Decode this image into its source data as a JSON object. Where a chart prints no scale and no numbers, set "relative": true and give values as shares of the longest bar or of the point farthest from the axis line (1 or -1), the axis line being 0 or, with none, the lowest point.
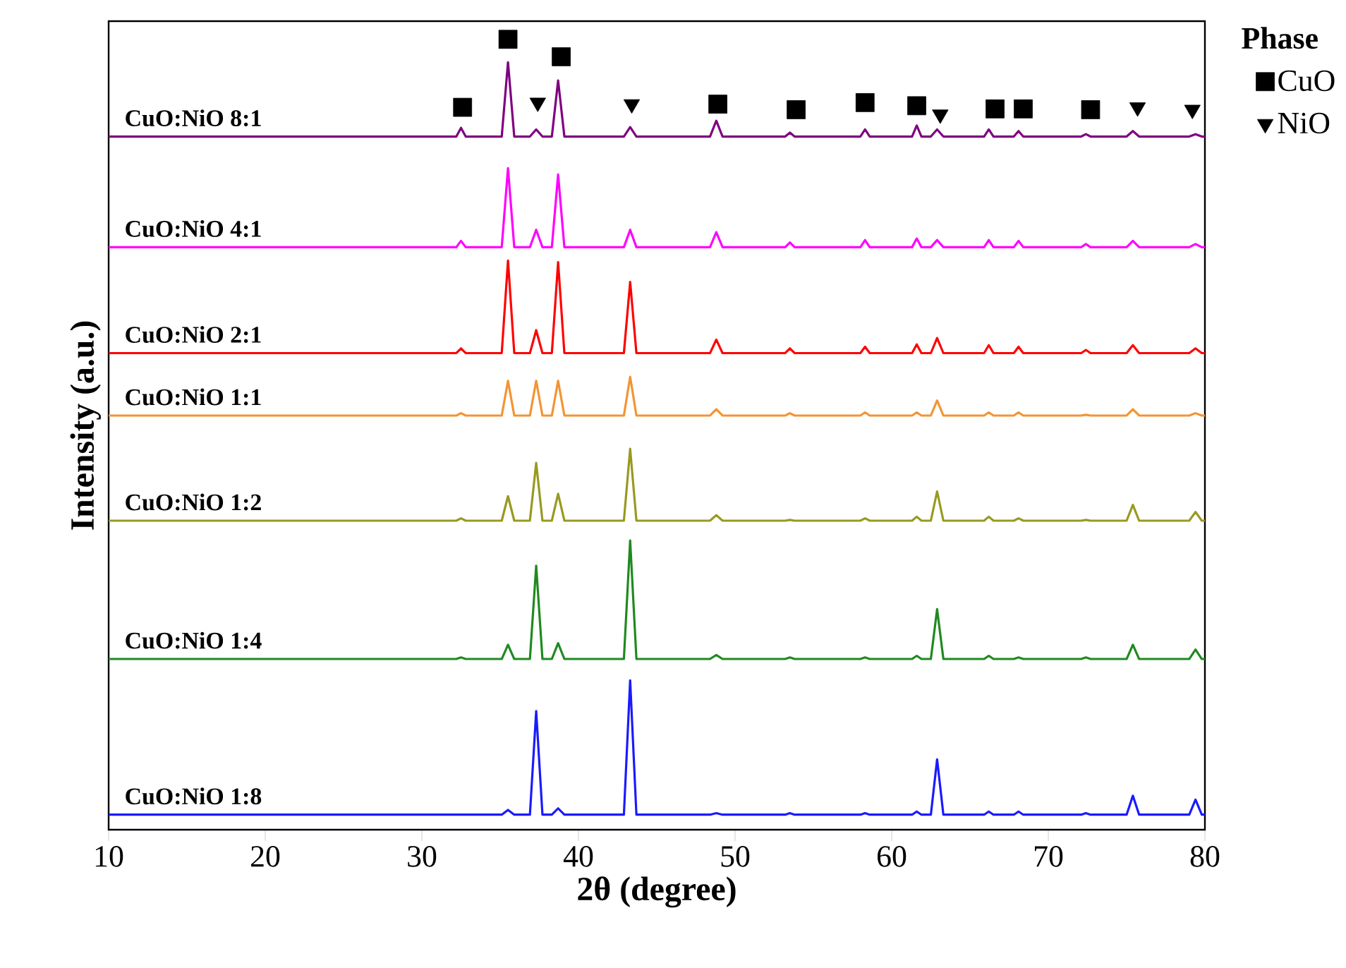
{
  "chart_data": {
    "type": "line",
    "relative": true,
    "xlabel": "2θ (degree)",
    "ylabel": "Intensity (a.u.)",
    "xlim": [
      10,
      80
    ],
    "xticks": [
      10,
      20,
      30,
      40,
      50,
      60,
      70,
      80
    ],
    "legend": "top right",
    "legend_title": "Phase",
    "x": [
      10,
      32.2,
      32.5,
      32.8,
      35.1,
      35.5,
      35.9,
      36.9,
      37.3,
      37.7,
      38.3,
      38.7,
      39.1,
      42.9,
      43.3,
      43.7,
      48.4,
      48.8,
      49.2,
      53.2,
      53.5,
      53.8,
      58.0,
      58.3,
      58.6,
      61.3,
      61.6,
      61.9,
      62.5,
      62.9,
      63.3,
      65.9,
      66.2,
      66.5,
      67.8,
      68.1,
      68.4,
      72.1,
      72.4,
      72.7,
      75.0,
      75.4,
      75.8,
      79.0,
      79.4,
      79.8,
      80
    ],
    "series": [
      {
        "name": "CuO:NiO 8:1",
        "color": "#800080",
        "values": [
          0.877,
          0.877,
          0.888,
          0.877,
          0.877,
          0.971,
          0.877,
          0.877,
          0.886,
          0.877,
          0.877,
          0.948,
          0.877,
          0.877,
          0.889,
          0.877,
          0.877,
          0.897,
          0.877,
          0.877,
          0.882,
          0.877,
          0.877,
          0.886,
          0.877,
          0.877,
          0.891,
          0.877,
          0.877,
          0.886,
          0.877,
          0.877,
          0.886,
          0.877,
          0.877,
          0.884,
          0.877,
          0.877,
          0.88,
          0.877,
          0.877,
          0.884,
          0.877,
          0.877,
          0.88,
          0.877,
          0.877
        ]
      },
      {
        "name": "CuO:NiO 4:1",
        "color": "#ff00ff",
        "values": [
          0.737,
          0.737,
          0.745,
          0.737,
          0.737,
          0.837,
          0.737,
          0.737,
          0.759,
          0.737,
          0.737,
          0.829,
          0.737,
          0.737,
          0.759,
          0.737,
          0.737,
          0.756,
          0.737,
          0.737,
          0.743,
          0.737,
          0.737,
          0.746,
          0.737,
          0.737,
          0.748,
          0.737,
          0.737,
          0.746,
          0.737,
          0.737,
          0.746,
          0.737,
          0.737,
          0.745,
          0.737,
          0.737,
          0.741,
          0.737,
          0.737,
          0.745,
          0.737,
          0.737,
          0.741,
          0.737,
          0.737
        ]
      },
      {
        "name": "CuO:NiO 2:1",
        "color": "#ff0000",
        "values": [
          0.603,
          0.603,
          0.609,
          0.603,
          0.603,
          0.72,
          0.603,
          0.603,
          0.632,
          0.603,
          0.603,
          0.718,
          0.603,
          0.603,
          0.693,
          0.603,
          0.603,
          0.62,
          0.603,
          0.603,
          0.609,
          0.603,
          0.603,
          0.611,
          0.603,
          0.603,
          0.614,
          0.603,
          0.603,
          0.622,
          0.603,
          0.603,
          0.613,
          0.603,
          0.603,
          0.611,
          0.603,
          0.603,
          0.607,
          0.603,
          0.603,
          0.613,
          0.603,
          0.603,
          0.609,
          0.603,
          0.603
        ]
      },
      {
        "name": "CuO:NiO 1:1",
        "color": "#f39433",
        "values": [
          0.524,
          0.524,
          0.527,
          0.524,
          0.524,
          0.568,
          0.524,
          0.524,
          0.568,
          0.524,
          0.524,
          0.568,
          0.524,
          0.524,
          0.573,
          0.524,
          0.524,
          0.532,
          0.524,
          0.524,
          0.527,
          0.524,
          0.524,
          0.528,
          0.524,
          0.524,
          0.528,
          0.524,
          0.524,
          0.543,
          0.524,
          0.524,
          0.528,
          0.524,
          0.524,
          0.528,
          0.524,
          0.524,
          0.525,
          0.524,
          0.524,
          0.532,
          0.524,
          0.524,
          0.527,
          0.524,
          0.524
        ]
      },
      {
        "name": "CuO:NiO 1:2",
        "color": "#999922",
        "values": [
          0.391,
          0.391,
          0.394,
          0.391,
          0.391,
          0.422,
          0.391,
          0.391,
          0.464,
          0.391,
          0.391,
          0.425,
          0.391,
          0.391,
          0.482,
          0.391,
          0.391,
          0.398,
          0.391,
          0.391,
          0.392,
          0.391,
          0.391,
          0.394,
          0.391,
          0.391,
          0.396,
          0.391,
          0.391,
          0.428,
          0.391,
          0.391,
          0.396,
          0.391,
          0.391,
          0.394,
          0.391,
          0.391,
          0.392,
          0.391,
          0.391,
          0.411,
          0.391,
          0.391,
          0.402,
          0.391,
          0.391
        ]
      },
      {
        "name": "CuO:NiO 1:4",
        "color": "#1f8a1f",
        "values": [
          0.216,
          0.216,
          0.218,
          0.216,
          0.216,
          0.234,
          0.216,
          0.216,
          0.334,
          0.216,
          0.216,
          0.236,
          0.216,
          0.216,
          0.366,
          0.216,
          0.216,
          0.221,
          0.216,
          0.216,
          0.218,
          0.216,
          0.216,
          0.218,
          0.216,
          0.216,
          0.22,
          0.216,
          0.216,
          0.279,
          0.216,
          0.216,
          0.22,
          0.216,
          0.216,
          0.218,
          0.216,
          0.216,
          0.218,
          0.216,
          0.216,
          0.234,
          0.216,
          0.216,
          0.228,
          0.216,
          0.216
        ]
      },
      {
        "name": "CuO:NiO 1:8",
        "color": "#1a1aff",
        "values": [
          0.019,
          0.019,
          0.019,
          0.019,
          0.019,
          0.025,
          0.019,
          0.019,
          0.15,
          0.019,
          0.019,
          0.027,
          0.019,
          0.019,
          0.189,
          0.019,
          0.019,
          0.021,
          0.019,
          0.019,
          0.021,
          0.019,
          0.019,
          0.021,
          0.019,
          0.019,
          0.023,
          0.019,
          0.019,
          0.089,
          0.019,
          0.019,
          0.023,
          0.019,
          0.019,
          0.023,
          0.019,
          0.019,
          0.021,
          0.019,
          0.019,
          0.043,
          0.019,
          0.019,
          0.038,
          0.019,
          0.019
        ]
      },
      {
        "name": "CuO",
        "type": "scatter",
        "marker": "square",
        "color": "#000000",
        "x": [
          32.6,
          35.5,
          38.9,
          48.9,
          53.9,
          58.3,
          61.6,
          66.6,
          68.4,
          72.7
        ],
        "values": [
          0.914,
          1.0,
          0.978,
          0.918,
          0.911,
          0.92,
          0.916,
          0.912,
          0.912,
          0.911
        ]
      },
      {
        "name": "NiO",
        "type": "scatter",
        "marker": "triangle",
        "color": "#000000",
        "x": [
          37.4,
          43.4,
          63.1,
          75.7,
          79.2
        ],
        "values": [
          0.92,
          0.918,
          0.905,
          0.914,
          0.911
        ]
      }
    ]
  }
}
